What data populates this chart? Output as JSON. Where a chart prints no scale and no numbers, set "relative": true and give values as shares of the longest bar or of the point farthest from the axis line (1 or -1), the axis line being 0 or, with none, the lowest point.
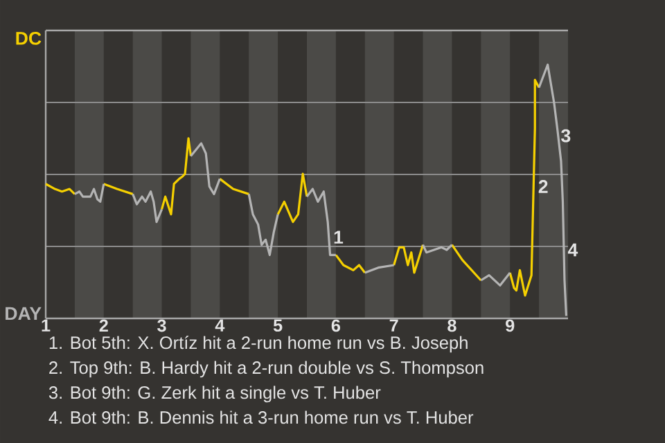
{
  "chart_data": {
    "type": "line",
    "relative": true,
    "grid": true,
    "xlim": [
      1,
      10
    ],
    "xticks": [
      1,
      2,
      3,
      4,
      5,
      6,
      7,
      8,
      9
    ],
    "bands": [
      {
        "axis": "x",
        "from": 1.5,
        "to": 2,
        "color": "#4b4a47"
      },
      {
        "axis": "x",
        "from": 2.5,
        "to": 3,
        "color": "#4b4a47"
      },
      {
        "axis": "x",
        "from": 3.5,
        "to": 4,
        "color": "#4b4a47"
      },
      {
        "axis": "x",
        "from": 4.5,
        "to": 5,
        "color": "#4b4a47"
      },
      {
        "axis": "x",
        "from": 5.5,
        "to": 6,
        "color": "#4b4a47"
      },
      {
        "axis": "x",
        "from": 6.5,
        "to": 7,
        "color": "#4b4a47"
      },
      {
        "axis": "x",
        "from": 7.5,
        "to": 8,
        "color": "#4b4a47"
      },
      {
        "axis": "x",
        "from": 8.5,
        "to": 9,
        "color": "#4b4a47"
      },
      {
        "axis": "x",
        "from": 9.5,
        "to": 10,
        "color": "#4b4a47"
      }
    ],
    "series": [
      {
        "name": "DC",
        "color": "#f5d000",
        "x": [
          1.0,
          1.16,
          1.28,
          1.41,
          1.5,
          null,
          2.0,
          2.23,
          2.5,
          null,
          3.0,
          3.06,
          3.16,
          3.21,
          3.3,
          3.36,
          3.4,
          3.46,
          3.5,
          null,
          4.0,
          4.23,
          4.5,
          null,
          5.0,
          5.11,
          5.26,
          5.35,
          5.43,
          5.5,
          null,
          6.0,
          6.13,
          6.3,
          6.4,
          6.5,
          null,
          7.0,
          7.09,
          7.17,
          7.24,
          7.3,
          7.35,
          7.5,
          null,
          8.0,
          8.18,
          8.5,
          null,
          9.0,
          9.07,
          9.11,
          9.17,
          9.26,
          9.37,
          9.39,
          9.43,
          9.43,
          9.5
        ],
        "values": [
          0.53,
          0.51,
          0.5,
          0.51,
          0.49,
          null,
          0.53,
          0.51,
          0.49,
          null,
          0.43,
          0.48,
          0.41,
          0.53,
          0.55,
          0.56,
          0.57,
          0.71,
          0.64,
          null,
          0.55,
          0.51,
          0.49,
          null,
          0.41,
          0.46,
          0.38,
          0.41,
          0.57,
          0.48,
          null,
          0.25,
          0.21,
          0.19,
          0.21,
          0.18,
          null,
          0.21,
          0.28,
          0.28,
          0.21,
          0.26,
          0.18,
          0.29,
          null,
          0.29,
          0.23,
          0.15,
          null,
          0.18,
          0.12,
          0.11,
          0.19,
          0.09,
          0.17,
          0.36,
          0.75,
          0.94,
          0.91
        ]
      },
      {
        "name": "DAY",
        "color": "#b4b4b4",
        "x": [
          1.5,
          1.58,
          1.64,
          1.77,
          1.83,
          1.89,
          1.94,
          2.0,
          null,
          2.5,
          2.57,
          2.66,
          2.72,
          2.81,
          2.86,
          2.91,
          3.0,
          null,
          3.5,
          3.68,
          3.76,
          3.82,
          3.9,
          4.0,
          null,
          4.5,
          4.57,
          4.66,
          4.72,
          4.79,
          4.86,
          4.93,
          5.0,
          null,
          5.5,
          5.6,
          5.69,
          5.79,
          5.86,
          5.9,
          6.0,
          null,
          6.5,
          6.73,
          7.0,
          null,
          7.5,
          7.56,
          7.82,
          7.91,
          8.0,
          null,
          8.5,
          8.64,
          8.83,
          9.0,
          null,
          9.5,
          9.65,
          9.76,
          9.82,
          9.88,
          9.91,
          9.94,
          9.97
        ],
        "values": [
          0.49,
          0.5,
          0.48,
          0.48,
          0.51,
          0.47,
          0.46,
          0.53,
          null,
          0.49,
          0.45,
          0.48,
          0.46,
          0.5,
          0.46,
          0.38,
          0.43,
          null,
          0.64,
          0.69,
          0.65,
          0.52,
          0.49,
          0.55,
          null,
          0.49,
          0.41,
          0.37,
          0.29,
          0.31,
          0.25,
          0.34,
          0.41,
          null,
          0.48,
          0.51,
          0.46,
          0.5,
          0.38,
          0.25,
          0.25,
          null,
          0.18,
          0.2,
          0.21,
          null,
          0.29,
          0.26,
          0.28,
          0.27,
          0.29,
          null,
          0.15,
          0.17,
          0.13,
          0.18,
          null,
          0.91,
          1.0,
          0.85,
          0.74,
          0.62,
          0.46,
          0.15,
          0.01
        ]
      }
    ],
    "annotations": [
      {
        "text": "1",
        "x": 5.9,
        "y": 0.32
      },
      {
        "text": "2",
        "x": 9.43,
        "y": 0.52
      },
      {
        "text": "3",
        "x": 9.82,
        "y": 0.72
      },
      {
        "text": "4",
        "x": 9.94,
        "y": 0.27
      },
      "1. Bot 5th: X. Ortíz hit a 2-run home run vs B. Joseph",
      "2. Top 9th: B. Hardy hit a 2-run double vs S. Thompson",
      "3. Bot 9th: G. Zerk hit a single vs T. Huber",
      "4. Bot 9th: B. Dennis hit a 3-run home run vs T. Huber"
    ]
  }
}
